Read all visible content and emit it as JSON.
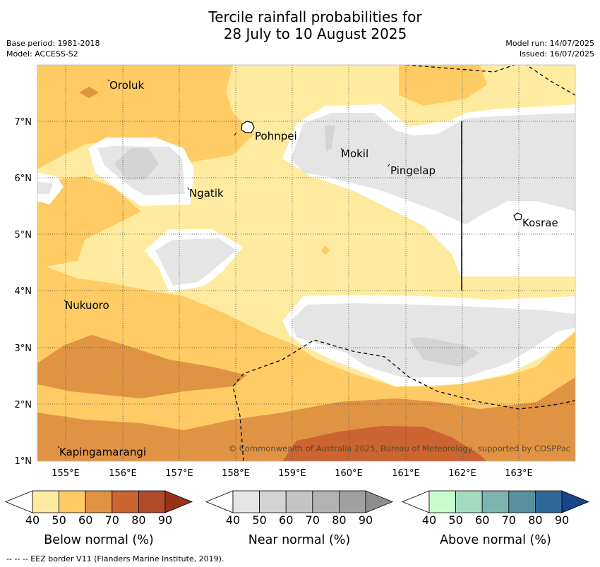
{
  "title": {
    "line1": "Tercile rainfall probabilities for",
    "line2": "28 July to 10 August 2025"
  },
  "meta_left": {
    "base_period": "Base period: 1981-2018",
    "model": "Model: ACCESS-S2"
  },
  "meta_right": {
    "model_run": "Model run: 14/07/2025",
    "issued": "Issued: 16/07/2025"
  },
  "map": {
    "x_ticks": [
      "155°E",
      "156°E",
      "157°E",
      "158°E",
      "159°E",
      "160°E",
      "161°E",
      "162°E",
      "163°E"
    ],
    "y_ticks": [
      "7°N",
      "6°N",
      "5°N",
      "4°N",
      "3°N",
      "2°N",
      "1°N"
    ],
    "places": {
      "oroluk": "Oroluk",
      "pohnpei": "Pohnpei",
      "mokil": "Mokil",
      "pingelap": "Pingelap",
      "ngatik": "Ngatik",
      "kosrae": "Kosrae",
      "nukuoro": "Nukuoro",
      "kapingamarangi": "Kapingamarangi"
    },
    "copyright": "© Commonwealth of Australia 2025, Bureau of Meteorology, supported by COSPPac",
    "colors": {
      "below_40": "#ffeba0",
      "below_50": "#fecb64",
      "below_60": "#e19344",
      "below_70": "#cb6431",
      "near_40": "#e5e5e5",
      "near_50": "#d4d4d4"
    }
  },
  "legends": [
    {
      "label": "Below normal (%)",
      "ticks": [
        "40",
        "50",
        "60",
        "70",
        "80",
        "90"
      ],
      "colors": [
        "#ffeba0",
        "#fecb64",
        "#e19344",
        "#cb6431",
        "#b14a2a",
        "#993219"
      ]
    },
    {
      "label": "Near normal (%)",
      "ticks": [
        "40",
        "50",
        "60",
        "70",
        "80",
        "90"
      ],
      "colors": [
        "#e5e5e5",
        "#d4d4d4",
        "#c4c4c4",
        "#b2b2b2",
        "#a0a0a0",
        "#8e8e8e"
      ]
    },
    {
      "label": "Above normal (%)",
      "ticks": [
        "40",
        "50",
        "60",
        "70",
        "80",
        "90"
      ],
      "colors": [
        "#c8fccc",
        "#a2dcc0",
        "#7cb4b0",
        "#5890a0",
        "#306898",
        "#18448a"
      ]
    }
  ],
  "footer": "-- -- -- EEZ border V11 (Flanders Marine Institute, 2019)."
}
